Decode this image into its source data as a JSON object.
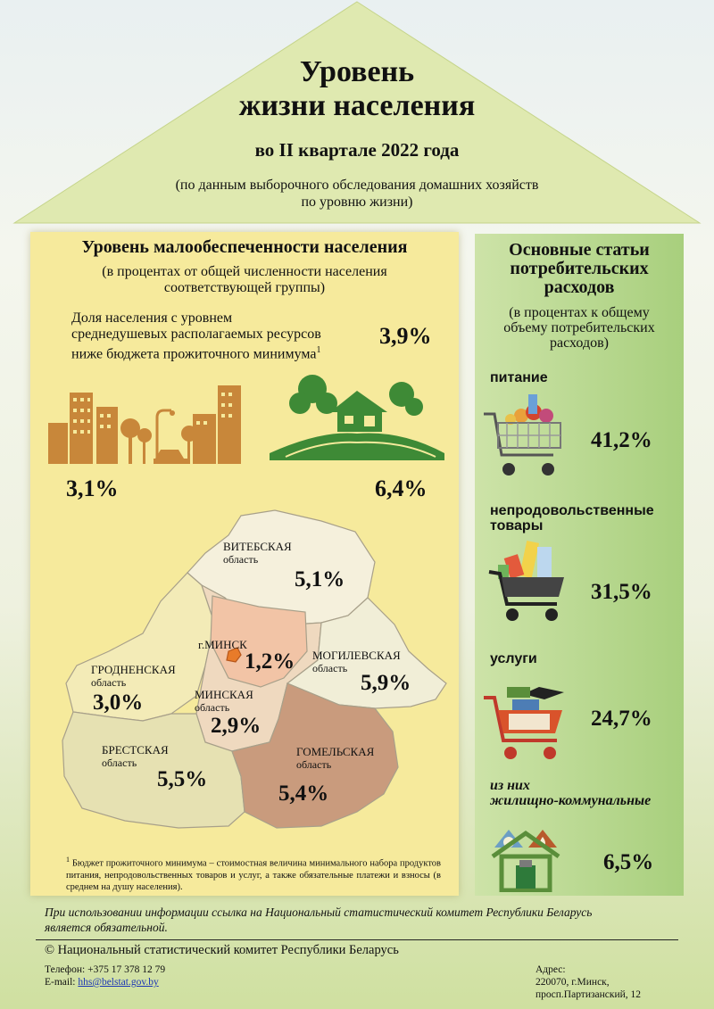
{
  "header": {
    "title_line1": "Уровень",
    "title_line2": "жизни населения",
    "subtitle": "во II квартале 2022 года",
    "note_line1": "(по данным выборочного обследования домашних хозяйств",
    "note_line2": "по уровню жизни)"
  },
  "poverty": {
    "title": "Уровень малообеспеченности населения",
    "subtitle_line1": "(в процентах от общей численности населения",
    "subtitle_line2": "соответствующей группы)",
    "share_line1": "Доля населения с уровнем",
    "share_line2": "среднедушевых располагаемых ресурсов",
    "share_line3": "ниже бюджета прожиточного минимума",
    "footnote_mark": "1",
    "share_value": "3,9%",
    "urban_value": "3,1%",
    "rural_value": "6,4%"
  },
  "regions": [
    {
      "name": "ВИТЕБСКАЯ",
      "sub": "область",
      "value": "5,1%"
    },
    {
      "name": "г.МИНСК",
      "sub": "",
      "value": "1,2%"
    },
    {
      "name": "МОГИЛЕВСКАЯ",
      "sub": "область",
      "value": "5,9%"
    },
    {
      "name": "ГРОДНЕНСКАЯ",
      "sub": "область",
      "value": "3,0%"
    },
    {
      "name": "МИНСКАЯ",
      "sub": "область",
      "value": "2,9%"
    },
    {
      "name": "БРЕСТСКАЯ",
      "sub": "область",
      "value": "5,5%"
    },
    {
      "name": "ГОМЕЛЬСКАЯ",
      "sub": "область",
      "value": "5,4%"
    }
  ],
  "footnote": {
    "mark": "1",
    "text": "Бюджет прожиточного минимума – стоимостная величина минимального набора продуктов питания, непродовольственных товаров и услуг, а также обязательные платежи и взносы (в среднем на душу населения)."
  },
  "expenses": {
    "title_line1": "Основные статьи",
    "title_line2": "потребительских",
    "title_line3": "расходов",
    "sub_line1": "(в процентах к общему",
    "sub_line2": "объему потребительских",
    "sub_line3": "расходов)",
    "items": [
      {
        "label": "питание",
        "value": "41,2%"
      },
      {
        "label_line1": "непродовольственные",
        "label_line2": "товары",
        "value": "31,5%"
      },
      {
        "label": "услуги",
        "value": "24,7%"
      },
      {
        "label_line1": "из них",
        "label_line2": "жилищно-коммунальные",
        "value": "6,5%"
      }
    ]
  },
  "footer": {
    "reference_line1": "При использовании информации ссылка на Национальный статистический комитет Республики Беларусь",
    "reference_line2": "является обязательной.",
    "copyright": "© Национальный статистический комитет Республики Беларусь",
    "phone": "Телефон: +375 17 378 12 79",
    "email_label": "E-mail: ",
    "email": "hhs@belstat.gov.by",
    "address_label": "Адрес:",
    "address_line1": "220070, г.Минск,",
    "address_line2": "проcп.Партизанский, 12"
  },
  "colors": {
    "roof": "#dfe9b0",
    "left_panel": "#f6ea9c",
    "right_panel": "#b5d68a",
    "city_icon": "#c8873a",
    "village_icon": "#3e8a36",
    "region_minsk_city": "#f2c4a6",
    "region_gomel": "#c99b7d",
    "region_vitebsk": "#f5f0dc",
    "region_minsk": "#efd9bf"
  }
}
